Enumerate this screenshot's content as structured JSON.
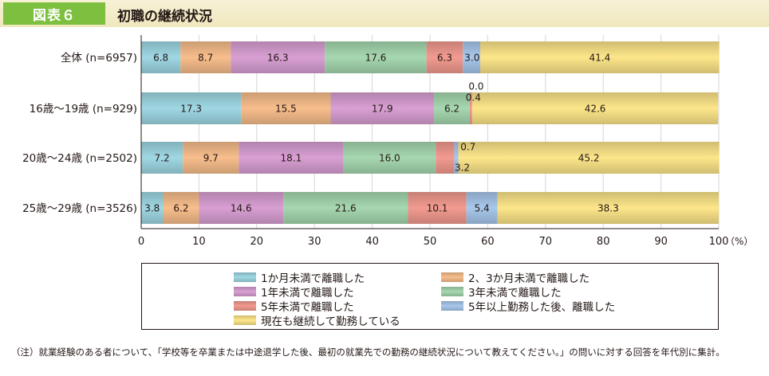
{
  "header": {
    "badge": "図表６",
    "title": "初職の継続状況"
  },
  "chart_data": {
    "type": "bar",
    "orientation": "horizontal",
    "stacked": true,
    "categories": [
      "全体 (n=6957)",
      "16歳〜19歳 (n=929)",
      "20歳〜24歳 (n=2502)",
      "25歳〜29歳 (n=3526)"
    ],
    "series": [
      {
        "name": "1か月未満で離職した",
        "color": "#9fd8e4",
        "values": [
          6.8,
          17.3,
          7.2,
          3.8
        ]
      },
      {
        "name": "2、3か月未満で離職した",
        "color": "#f8be8c",
        "values": [
          8.7,
          15.5,
          9.7,
          6.2
        ]
      },
      {
        "name": "1年未満で離職した",
        "color": "#d9a0d3",
        "values": [
          16.3,
          17.9,
          18.1,
          14.6
        ]
      },
      {
        "name": "3年未満で離職した",
        "color": "#a6d8b0",
        "values": [
          17.6,
          6.2,
          16.0,
          21.6
        ]
      },
      {
        "name": "5年未満で離職した",
        "color": "#f39b90",
        "values": [
          6.3,
          0.4,
          3.2,
          10.1
        ]
      },
      {
        "name": "5年以上勤務した後、離職した",
        "color": "#a8c8ec",
        "values": [
          3.0,
          0.0,
          0.7,
          5.4
        ]
      },
      {
        "name": "現在も継続して勤務している",
        "color": "#fde68a",
        "values": [
          41.4,
          42.6,
          45.2,
          38.3
        ]
      }
    ],
    "xlim": [
      0,
      100
    ],
    "xticks": [
      0,
      10,
      20,
      30,
      40,
      50,
      60,
      70,
      80,
      90,
      100
    ],
    "unit_label": "（%）",
    "data_labels": [
      [
        "6.8",
        "8.7",
        "16.3",
        "17.6",
        "6.3",
        "3.0",
        "41.4"
      ],
      [
        "17.3",
        "15.5",
        "17.9",
        "6.2",
        "0.4",
        "0.0",
        "42.6"
      ],
      [
        "7.2",
        "9.7",
        "18.1",
        "16.0",
        "3.2",
        "0.7",
        "45.2"
      ],
      [
        "3.8",
        "6.2",
        "14.6",
        "21.6",
        "10.1",
        "5.4",
        "38.3"
      ]
    ],
    "grid": true,
    "legend_position": "bottom"
  },
  "footnote": "（注）就業経験のある者について、「学校等を卒業または中途退学した後、最初の就業先での勤務の継続状況について教えてください。」の問いに対する回答を年代別に集計。"
}
